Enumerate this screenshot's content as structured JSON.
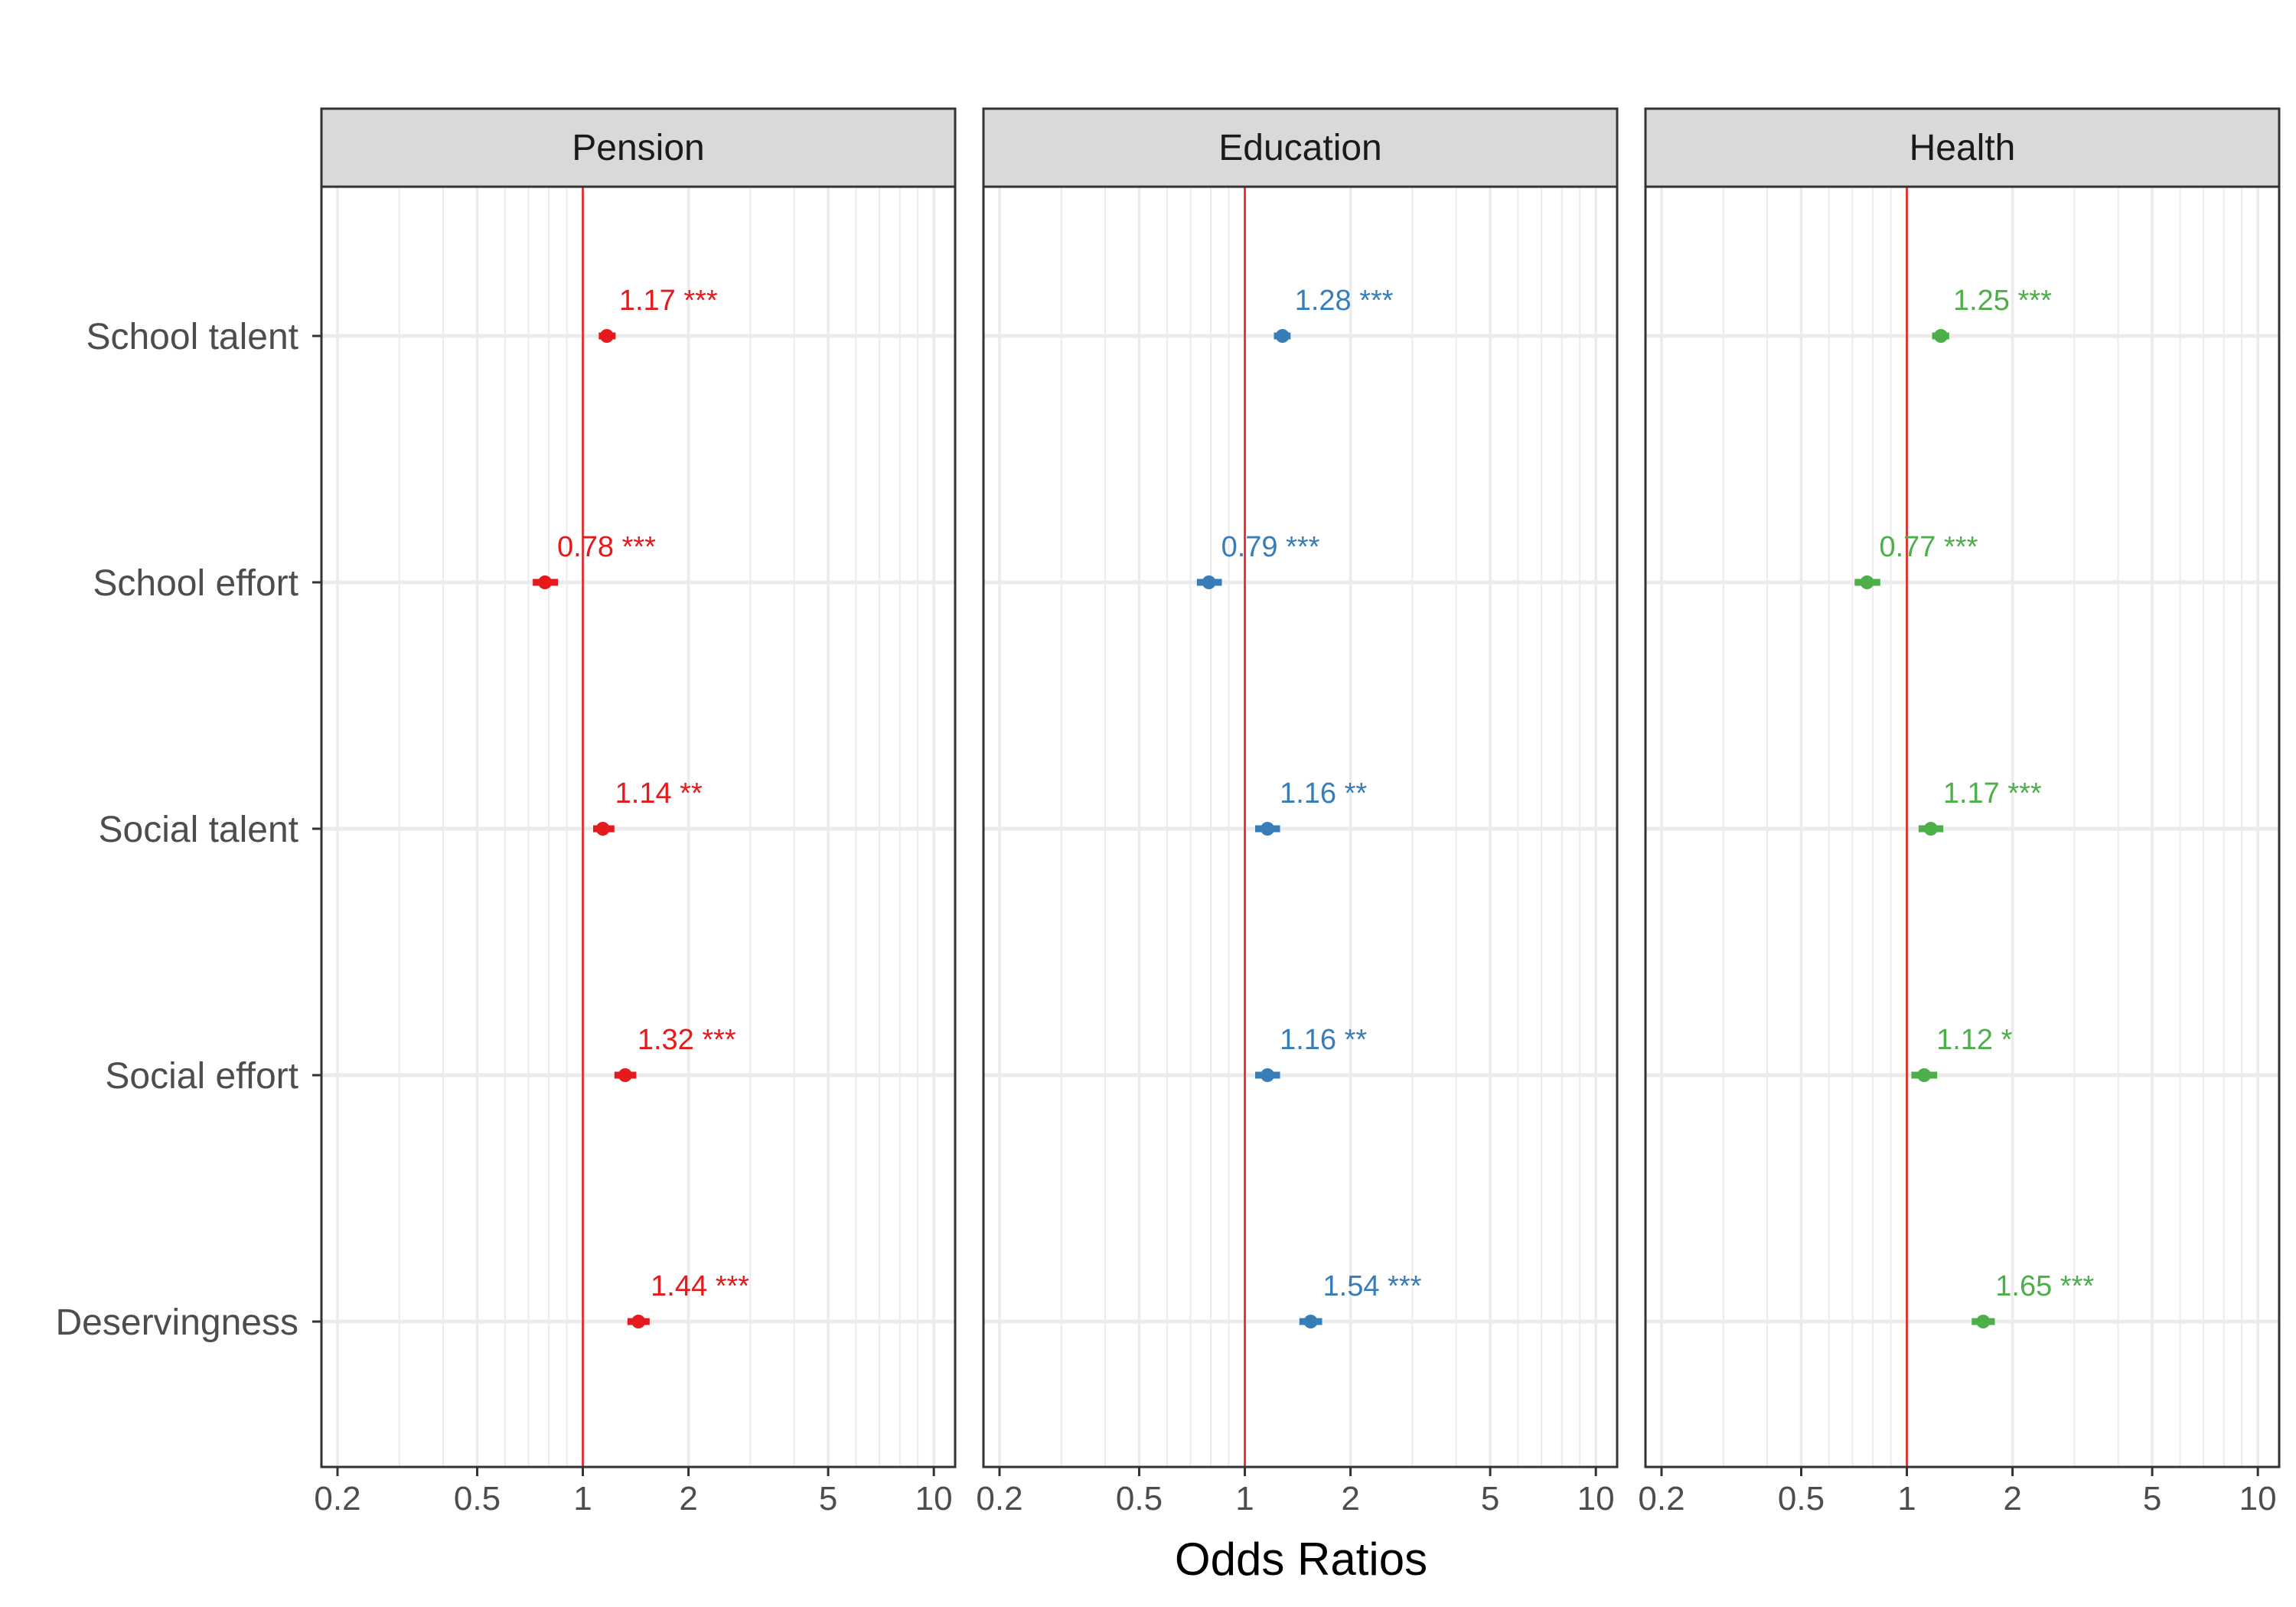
{
  "chart_data": {
    "type": "forest",
    "xlabel": "Odds Ratios",
    "x_scale": "log",
    "xlim": [
      0.18,
      11.5
    ],
    "x_ticks": [
      0.2,
      0.5,
      1,
      2,
      5,
      10
    ],
    "x_tick_labels": [
      "0.2",
      "0.5",
      "1",
      "2",
      "5",
      "10"
    ],
    "reference_line": 1,
    "reference_color": "#e41a1c",
    "grid": true,
    "categories": [
      "School talent",
      "School effort",
      "Social talent",
      "Social effort",
      "Deservingness"
    ],
    "panels": [
      {
        "name": "Pension",
        "color": "#e41a1c",
        "values": [
          1.17,
          0.78,
          1.14,
          1.32,
          1.44
        ],
        "ci_low": [
          1.11,
          0.72,
          1.07,
          1.23,
          1.34
        ],
        "ci_high": [
          1.24,
          0.85,
          1.23,
          1.42,
          1.55
        ],
        "labels": [
          "1.17 ***",
          "0.78 ***",
          "1.14 **",
          "1.32 ***",
          "1.44 ***"
        ]
      },
      {
        "name": "Education",
        "color": "#377eb8",
        "values": [
          1.28,
          0.79,
          1.16,
          1.16,
          1.54
        ],
        "ci_low": [
          1.21,
          0.73,
          1.07,
          1.07,
          1.43
        ],
        "ci_high": [
          1.35,
          0.86,
          1.26,
          1.26,
          1.66
        ],
        "labels": [
          "1.28 ***",
          "0.79 ***",
          "1.16 **",
          "1.16 **",
          "1.54 ***"
        ]
      },
      {
        "name": "Health",
        "color": "#4daf4a",
        "values": [
          1.25,
          0.77,
          1.17,
          1.12,
          1.65
        ],
        "ci_low": [
          1.18,
          0.71,
          1.08,
          1.03,
          1.53
        ],
        "ci_high": [
          1.32,
          0.84,
          1.27,
          1.22,
          1.78
        ],
        "labels": [
          "1.25 ***",
          "0.77 ***",
          "1.17 ***",
          "1.12 *",
          "1.65 ***"
        ]
      }
    ]
  }
}
